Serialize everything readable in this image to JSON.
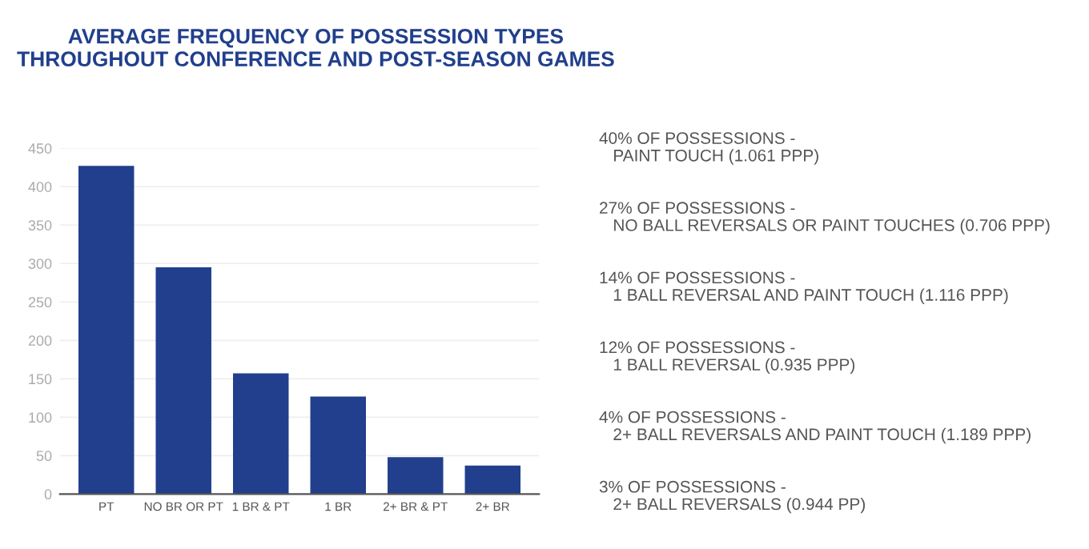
{
  "chart_data": {
    "type": "bar",
    "title": "AVERAGE FREQUENCY OF POSSESSION TYPES\nTHROUGHOUT CONFERENCE AND POST-SEASON GAMES",
    "categories": [
      "PT",
      "NO BR OR PT",
      "1 BR & PT",
      "1 BR",
      "2+ BR & PT",
      "2+ BR"
    ],
    "values": [
      427,
      295,
      157,
      127,
      48,
      37
    ],
    "color": "#213f8c",
    "ylim": [
      0,
      450
    ],
    "yticks": [
      0,
      50,
      100,
      150,
      200,
      250,
      300,
      350,
      400,
      450
    ],
    "grid": "y",
    "annotations": [
      "40% OF POSSESSIONS -\n   PAINT TOUCH (1.061 PPP)",
      "27% OF POSSESSIONS -\n   NO BALL REVERSALS OR PAINT TOUCHES (0.706 PPP)",
      "14% OF POSSESSIONS -\n   1 BALL REVERSAL AND PAINT TOUCH (1.116 PPP)",
      "12% OF POSSESSIONS -\n   1 BALL REVERSAL (0.935 PPP)",
      "4% OF POSSESSIONS -\n   2+ BALL REVERSALS AND PAINT TOUCH (1.189 PPP)",
      "3% OF POSSESSIONS -\n   2+ BALL REVERSALS (0.944 PP)"
    ]
  }
}
